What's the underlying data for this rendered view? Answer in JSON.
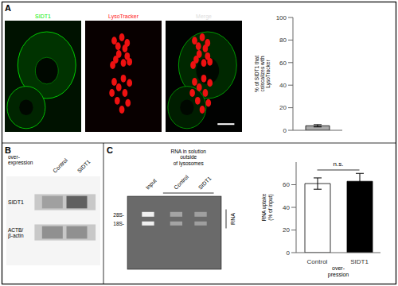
{
  "chart_data": [
    {
      "type": "bar",
      "categories": [
        null
      ],
      "values": [
        4
      ],
      "errors": [
        1
      ],
      "color": "#aaaaaa",
      "ylim": [
        0,
        100
      ],
      "yticks": [
        0,
        20,
        40,
        60,
        80,
        100
      ],
      "y_label": "% of SIDT1 that\ncolocalizes with\nLysoTracker",
      "grid": false,
      "tick_labels": "y",
      "annotations": [
        {
          "text": "A"
        },
        {
          "text": "SIDT1",
          "color": "#00ee00"
        },
        {
          "text": "LysoTracker",
          "color": "#ff2222"
        },
        {
          "text": "Merge",
          "color": "#dddddd"
        }
      ]
    },
    {
      "type": "bar",
      "categories": [
        "Control",
        "SIDT1"
      ],
      "values": [
        61,
        63
      ],
      "errors": [
        5,
        7
      ],
      "colors": [
        "#ffffff",
        "#000000"
      ],
      "ylim": [
        0,
        80
      ],
      "yticks": [
        0,
        20,
        40,
        60
      ],
      "y_label": "RNA uptake\n(% of input)",
      "x_label": "over-\npression",
      "grid": false,
      "annotations": [
        {
          "text": "n.s.",
          "y": 73
        },
        {
          "text": "B"
        },
        {
          "text": "over-\nexpression"
        },
        {
          "text": "Control"
        },
        {
          "text": "SIDT1"
        },
        {
          "text": "SIDT1"
        },
        {
          "text": "ACTB/\nβ-actin"
        },
        {
          "text": "C"
        },
        {
          "text": "RNA in solution\noutside\nof lysosomes"
        },
        {
          "text": "Input"
        },
        {
          "text": "Control"
        },
        {
          "text": "SIDT1"
        },
        {
          "text": "28S-"
        },
        {
          "text": "18S-"
        },
        {
          "text": "RNA"
        }
      ]
    }
  ]
}
